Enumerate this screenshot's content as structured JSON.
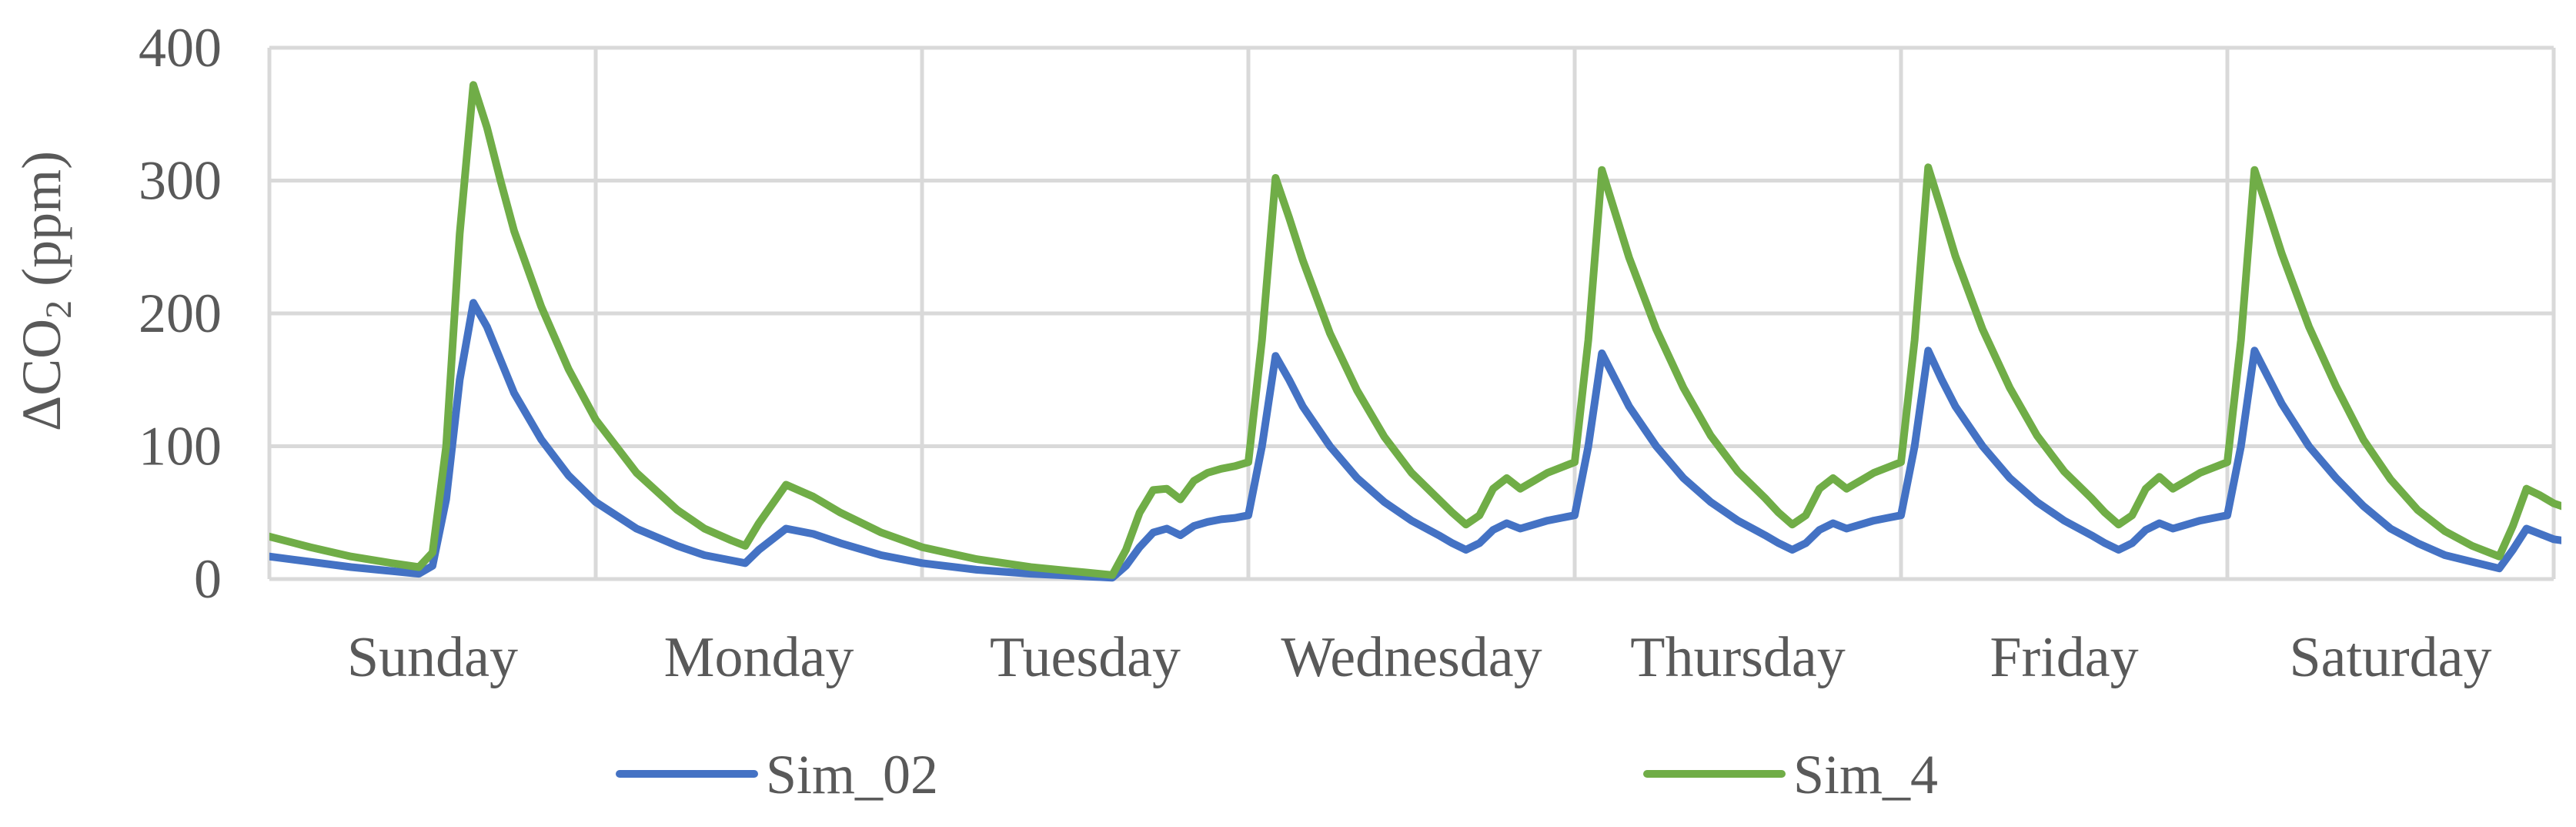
{
  "chart_data": {
    "type": "line",
    "title": "",
    "ylabel_parts": [
      "ΔCO",
      "2",
      " (ppm)"
    ],
    "ylim": [
      0,
      400
    ],
    "yticks": [
      0,
      100,
      200,
      300,
      400
    ],
    "xlim": [
      0,
      168
    ],
    "x_unit": "hours",
    "categories": [
      "Sunday",
      "Monday",
      "Tuesday",
      "Wednesday",
      "Thursday",
      "Friday",
      "Saturday"
    ],
    "grid": true,
    "legend_position": "bottom",
    "series": [
      {
        "name": "Sim_02",
        "color": "#4472c4",
        "points": [
          [
            0,
            17
          ],
          [
            3,
            13
          ],
          [
            6,
            9
          ],
          [
            9,
            6
          ],
          [
            11,
            4
          ],
          [
            12,
            10
          ],
          [
            13,
            60
          ],
          [
            14,
            150
          ],
          [
            15,
            208
          ],
          [
            16,
            190
          ],
          [
            17,
            165
          ],
          [
            18,
            140
          ],
          [
            20,
            105
          ],
          [
            22,
            78
          ],
          [
            24,
            58
          ],
          [
            27,
            38
          ],
          [
            30,
            25
          ],
          [
            32,
            18
          ],
          [
            34,
            14
          ],
          [
            35,
            12
          ],
          [
            36,
            22
          ],
          [
            38,
            38
          ],
          [
            40,
            34
          ],
          [
            42,
            27
          ],
          [
            45,
            18
          ],
          [
            48,
            12
          ],
          [
            52,
            7
          ],
          [
            56,
            4
          ],
          [
            60,
            2
          ],
          [
            62,
            1
          ],
          [
            63,
            10
          ],
          [
            64,
            24
          ],
          [
            65,
            35
          ],
          [
            66,
            38
          ],
          [
            67,
            33
          ],
          [
            68,
            40
          ],
          [
            69,
            43
          ],
          [
            70,
            45
          ],
          [
            71,
            46
          ],
          [
            72,
            48
          ],
          [
            73,
            100
          ],
          [
            74,
            168
          ],
          [
            75,
            150
          ],
          [
            76,
            130
          ],
          [
            78,
            100
          ],
          [
            80,
            76
          ],
          [
            82,
            58
          ],
          [
            84,
            44
          ],
          [
            86,
            33
          ],
          [
            87,
            27
          ],
          [
            88,
            22
          ],
          [
            89,
            27
          ],
          [
            90,
            37
          ],
          [
            91,
            42
          ],
          [
            92,
            38
          ],
          [
            93,
            41
          ],
          [
            94,
            44
          ],
          [
            95,
            46
          ],
          [
            96,
            48
          ],
          [
            97,
            100
          ],
          [
            98,
            170
          ],
          [
            99,
            150
          ],
          [
            100,
            130
          ],
          [
            102,
            100
          ],
          [
            104,
            76
          ],
          [
            106,
            58
          ],
          [
            108,
            44
          ],
          [
            110,
            33
          ],
          [
            111,
            27
          ],
          [
            112,
            22
          ],
          [
            113,
            27
          ],
          [
            114,
            37
          ],
          [
            115,
            42
          ],
          [
            116,
            38
          ],
          [
            117,
            41
          ],
          [
            118,
            44
          ],
          [
            119,
            46
          ],
          [
            120,
            48
          ],
          [
            121,
            100
          ],
          [
            122,
            172
          ],
          [
            123,
            150
          ],
          [
            124,
            130
          ],
          [
            126,
            100
          ],
          [
            128,
            76
          ],
          [
            130,
            58
          ],
          [
            132,
            44
          ],
          [
            134,
            33
          ],
          [
            135,
            27
          ],
          [
            136,
            22
          ],
          [
            137,
            27
          ],
          [
            138,
            37
          ],
          [
            139,
            42
          ],
          [
            140,
            38
          ],
          [
            141,
            41
          ],
          [
            142,
            44
          ],
          [
            143,
            46
          ],
          [
            144,
            48
          ],
          [
            145,
            100
          ],
          [
            146,
            172
          ],
          [
            147,
            152
          ],
          [
            148,
            132
          ],
          [
            150,
            100
          ],
          [
            152,
            76
          ],
          [
            154,
            55
          ],
          [
            156,
            38
          ],
          [
            158,
            27
          ],
          [
            160,
            18
          ],
          [
            162,
            13
          ],
          [
            164,
            8
          ],
          [
            165,
            22
          ],
          [
            166,
            38
          ],
          [
            167,
            34
          ],
          [
            168,
            30
          ],
          [
            170,
            27
          ],
          [
            172,
            23
          ]
        ]
      },
      {
        "name": "Sim_4",
        "color": "#70ad47",
        "points": [
          [
            0,
            32
          ],
          [
            3,
            24
          ],
          [
            6,
            17
          ],
          [
            9,
            12
          ],
          [
            11,
            9
          ],
          [
            12,
            20
          ],
          [
            13,
            100
          ],
          [
            14,
            260
          ],
          [
            15,
            372
          ],
          [
            16,
            340
          ],
          [
            17,
            300
          ],
          [
            18,
            262
          ],
          [
            20,
            205
          ],
          [
            22,
            158
          ],
          [
            24,
            120
          ],
          [
            27,
            80
          ],
          [
            30,
            52
          ],
          [
            32,
            38
          ],
          [
            34,
            29
          ],
          [
            35,
            25
          ],
          [
            36,
            42
          ],
          [
            38,
            71
          ],
          [
            40,
            62
          ],
          [
            42,
            50
          ],
          [
            45,
            35
          ],
          [
            48,
            24
          ],
          [
            52,
            15
          ],
          [
            56,
            9
          ],
          [
            60,
            5
          ],
          [
            62,
            3
          ],
          [
            63,
            22
          ],
          [
            64,
            50
          ],
          [
            65,
            67
          ],
          [
            66,
            68
          ],
          [
            67,
            60
          ],
          [
            68,
            74
          ],
          [
            69,
            80
          ],
          [
            70,
            83
          ],
          [
            71,
            85
          ],
          [
            72,
            88
          ],
          [
            73,
            180
          ],
          [
            74,
            302
          ],
          [
            75,
            272
          ],
          [
            76,
            240
          ],
          [
            78,
            185
          ],
          [
            80,
            142
          ],
          [
            82,
            107
          ],
          [
            84,
            80
          ],
          [
            86,
            60
          ],
          [
            87,
            50
          ],
          [
            88,
            41
          ],
          [
            89,
            48
          ],
          [
            90,
            68
          ],
          [
            91,
            76
          ],
          [
            92,
            68
          ],
          [
            93,
            74
          ],
          [
            94,
            80
          ],
          [
            95,
            84
          ],
          [
            96,
            88
          ],
          [
            97,
            180
          ],
          [
            98,
            308
          ],
          [
            99,
            275
          ],
          [
            100,
            242
          ],
          [
            102,
            188
          ],
          [
            104,
            144
          ],
          [
            106,
            108
          ],
          [
            108,
            81
          ],
          [
            110,
            61
          ],
          [
            111,
            50
          ],
          [
            112,
            41
          ],
          [
            113,
            48
          ],
          [
            114,
            68
          ],
          [
            115,
            76
          ],
          [
            116,
            68
          ],
          [
            117,
            74
          ],
          [
            118,
            80
          ],
          [
            119,
            84
          ],
          [
            120,
            88
          ],
          [
            121,
            180
          ],
          [
            122,
            310
          ],
          [
            123,
            277
          ],
          [
            124,
            243
          ],
          [
            126,
            188
          ],
          [
            128,
            144
          ],
          [
            130,
            108
          ],
          [
            132,
            81
          ],
          [
            134,
            61
          ],
          [
            135,
            50
          ],
          [
            136,
            41
          ],
          [
            137,
            48
          ],
          [
            138,
            68
          ],
          [
            139,
            77
          ],
          [
            140,
            68
          ],
          [
            141,
            74
          ],
          [
            142,
            80
          ],
          [
            143,
            84
          ],
          [
            144,
            88
          ],
          [
            145,
            180
          ],
          [
            146,
            308
          ],
          [
            147,
            277
          ],
          [
            148,
            245
          ],
          [
            150,
            190
          ],
          [
            152,
            145
          ],
          [
            154,
            105
          ],
          [
            156,
            75
          ],
          [
            158,
            52
          ],
          [
            160,
            36
          ],
          [
            162,
            25
          ],
          [
            164,
            17
          ],
          [
            165,
            40
          ],
          [
            166,
            68
          ],
          [
            167,
            63
          ],
          [
            168,
            57
          ],
          [
            170,
            50
          ],
          [
            172,
            43
          ]
        ]
      }
    ]
  }
}
